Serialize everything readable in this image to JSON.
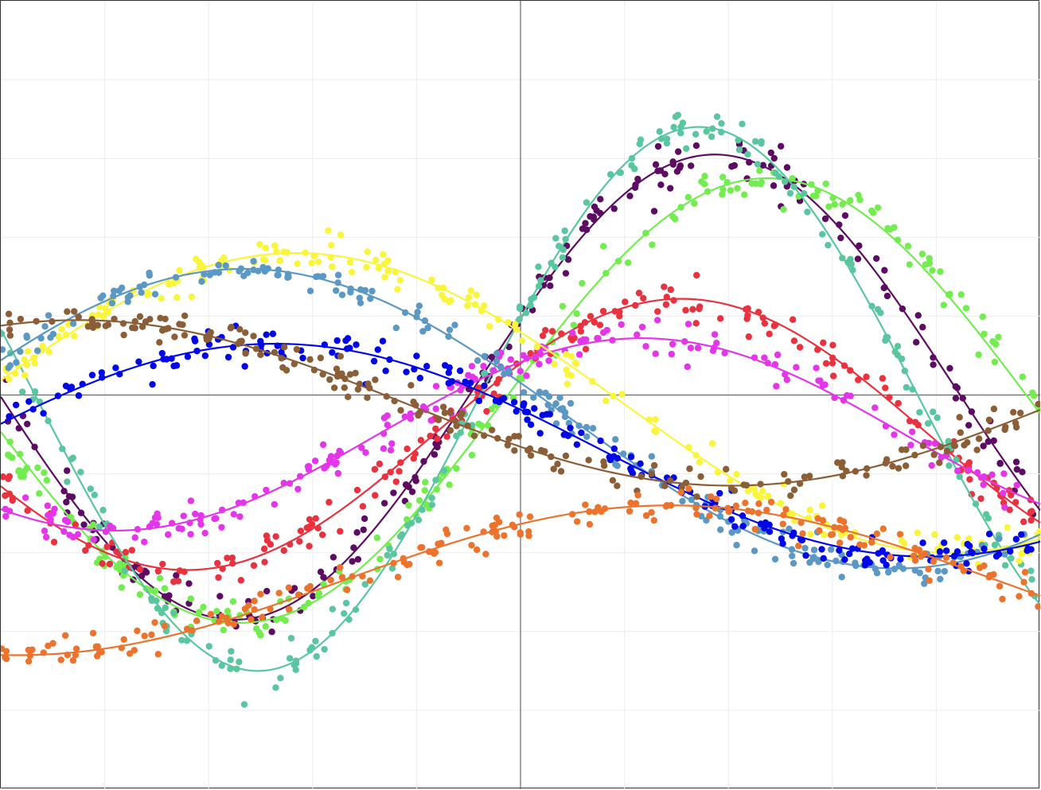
{
  "chart_data": {
    "type": "scatter",
    "title": "",
    "xlabel": "",
    "ylabel": "",
    "xlim": [
      -5,
      5
    ],
    "ylim": [
      -5,
      5
    ],
    "grid": true,
    "legend": "none",
    "axes_through_origin": true,
    "colors": {
      "frame": "#333333",
      "grid": "#ececec",
      "axis": "#666666"
    },
    "series": [
      {
        "color": "#5c0d63",
        "amp": 2.95,
        "freq": 0.68,
        "phase": 0.3,
        "offset": 0.1,
        "noise": 0.13,
        "seed": 11
      },
      {
        "color": "#72ec4e",
        "amp": 2.82,
        "freq": 0.62,
        "phase": 0.1,
        "offset": -0.07,
        "noise": 0.13,
        "seed": 23
      },
      {
        "color": "#e8323f",
        "amp": 1.72,
        "freq": 0.66,
        "phase": 0.55,
        "offset": -0.5,
        "noise": 0.12,
        "seed": 37
      },
      {
        "color": "#5ac69f",
        "amp": 3.45,
        "freq": 0.74,
        "phase": 0.3,
        "offset": -0.05,
        "noise": 0.12,
        "seed": 41
      },
      {
        "color": "#e236e8",
        "amp": 1.22,
        "freq": 0.62,
        "phase": 0.85,
        "offset": -0.5,
        "noise": 0.11,
        "seed": 53
      },
      {
        "color": "#f9f53c",
        "amp": 1.9,
        "freq": 0.5,
        "phase": 2.65,
        "offset": -0.1,
        "noise": 0.11,
        "seed": 67
      },
      {
        "color": "#5b98c4",
        "amp": 1.9,
        "freq": 0.5,
        "phase": 2.9,
        "offset": -0.3,
        "noise": 0.11,
        "seed": 71
      },
      {
        "color": "#0208e4",
        "amp": 1.35,
        "freq": 0.5,
        "phase": 2.75,
        "offset": -0.7,
        "noise": 0.11,
        "seed": 83
      },
      {
        "color": "#8a5e36",
        "amp": 1.05,
        "freq": 0.5,
        "phase": 3.7,
        "offset": -0.1,
        "noise": 0.1,
        "seed": 97
      },
      {
        "color": "#ec732e",
        "amp": 0.95,
        "freq": 0.5,
        "phase": 0.85,
        "offset": -2.35,
        "noise": 0.1,
        "seed": 103
      }
    ],
    "points_per_series": 190
  }
}
